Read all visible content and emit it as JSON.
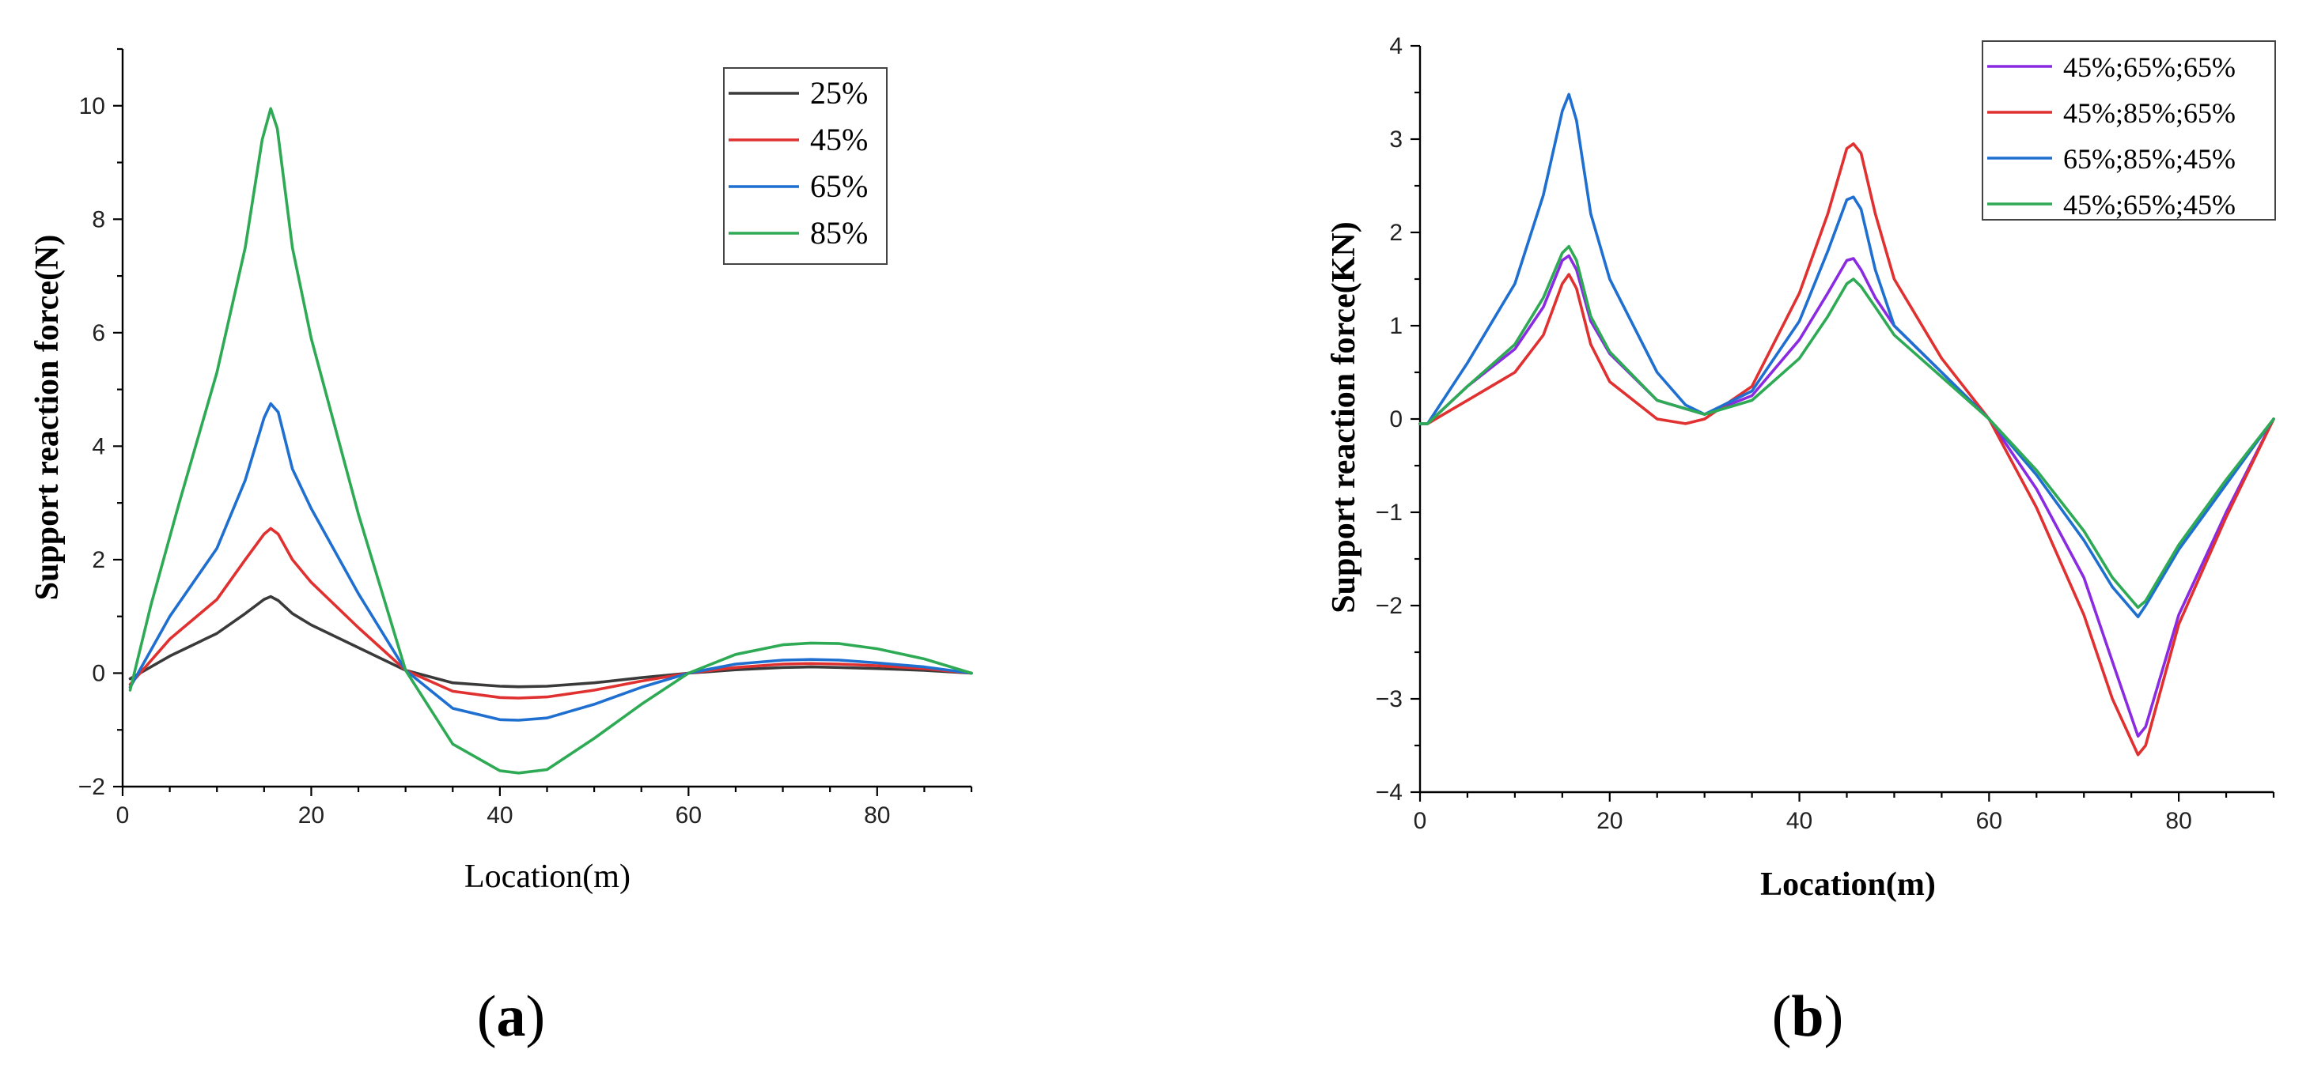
{
  "chart_data": [
    {
      "type": "line",
      "panel_label": "(a)",
      "panel_letter": "a",
      "xlabel": "Location(m)",
      "ylabel": "Support reaction force(N)",
      "xlim": [
        0,
        90
      ],
      "ylim": [
        -2,
        11
      ],
      "xticks": [
        0,
        20,
        40,
        60,
        80
      ],
      "yticks": [
        -2,
        0,
        2,
        4,
        6,
        8,
        10
      ],
      "xtick_labels": [
        "0",
        "20",
        "40",
        "60",
        "80"
      ],
      "ytick_labels": [
        "−2",
        "0",
        "2",
        "4",
        "6",
        "8",
        "10"
      ],
      "legend_position": "top-right",
      "series": [
        {
          "name": "25%",
          "color": "#3a3a3a",
          "x": [
            0.8,
            5,
            10,
            13,
            15,
            15.7,
            16.5,
            18,
            20,
            25,
            30,
            35,
            40,
            42,
            45,
            50,
            55,
            60,
            65,
            70,
            73,
            76,
            80,
            85,
            90
          ],
          "y": [
            -0.1,
            0.3,
            0.7,
            1.05,
            1.3,
            1.35,
            1.28,
            1.05,
            0.85,
            0.45,
            0.05,
            -0.17,
            -0.23,
            -0.24,
            -0.23,
            -0.17,
            -0.08,
            0.0,
            0.06,
            0.1,
            0.11,
            0.1,
            0.08,
            0.05,
            0.0
          ]
        },
        {
          "name": "45%",
          "color": "#e03030",
          "x": [
            0.8,
            5,
            10,
            13,
            15,
            15.7,
            16.5,
            18,
            20,
            25,
            30,
            35,
            40,
            42,
            45,
            50,
            55,
            60,
            65,
            70,
            73,
            76,
            80,
            85,
            90
          ],
          "y": [
            -0.2,
            0.6,
            1.3,
            2.0,
            2.45,
            2.55,
            2.45,
            2.0,
            1.6,
            0.8,
            0.05,
            -0.32,
            -0.43,
            -0.44,
            -0.42,
            -0.3,
            -0.14,
            0.0,
            0.1,
            0.16,
            0.17,
            0.16,
            0.13,
            0.08,
            0.0
          ]
        },
        {
          "name": "65%",
          "color": "#1e6fd0",
          "x": [
            0.8,
            5,
            10,
            13,
            15,
            15.7,
            16.5,
            18,
            20,
            25,
            30,
            35,
            40,
            42,
            45,
            50,
            55,
            60,
            65,
            70,
            73,
            76,
            80,
            85,
            90
          ],
          "y": [
            -0.25,
            1.0,
            2.2,
            3.4,
            4.5,
            4.75,
            4.6,
            3.6,
            2.9,
            1.4,
            0.05,
            -0.62,
            -0.82,
            -0.83,
            -0.79,
            -0.55,
            -0.25,
            0.0,
            0.16,
            0.23,
            0.24,
            0.23,
            0.18,
            0.11,
            0.0
          ]
        },
        {
          "name": "85%",
          "color": "#2eaa55",
          "x": [
            0.8,
            3,
            6,
            10,
            13,
            14.8,
            15.7,
            16.4,
            18,
            20,
            25,
            30,
            35,
            40,
            42,
            45,
            50,
            55,
            60,
            65,
            70,
            73,
            76,
            80,
            85,
            90
          ],
          "y": [
            -0.3,
            1.2,
            3.0,
            5.3,
            7.5,
            9.4,
            9.95,
            9.6,
            7.5,
            5.9,
            2.8,
            0.05,
            -1.25,
            -1.72,
            -1.76,
            -1.7,
            -1.15,
            -0.55,
            0.0,
            0.33,
            0.5,
            0.53,
            0.52,
            0.43,
            0.25,
            0.0
          ]
        }
      ]
    },
    {
      "type": "line",
      "panel_label": "(b)",
      "panel_letter": "b",
      "xlabel": "Location(m)",
      "ylabel": "Support reaction force(KN)",
      "xlim": [
        0,
        90
      ],
      "ylim": [
        -4,
        4
      ],
      "xticks": [
        0,
        20,
        40,
        60,
        80
      ],
      "yticks": [
        -4,
        -3,
        -2,
        -1,
        0,
        1,
        2,
        3,
        4
      ],
      "xtick_labels": [
        "0",
        "20",
        "40",
        "60",
        "80"
      ],
      "ytick_labels": [
        "−4",
        "−3",
        "−2",
        "−1",
        "0",
        "1",
        "2",
        "3",
        "4"
      ],
      "legend_position": "top-right",
      "series": [
        {
          "name": "45%;65%;65%",
          "color": "#8a2be2",
          "x": [
            0,
            0.8,
            5,
            10,
            13,
            15,
            15.7,
            16.5,
            18,
            20,
            25,
            30,
            35,
            40,
            43,
            45,
            45.7,
            46.5,
            48,
            50,
            55,
            60,
            65,
            70,
            73,
            75.7,
            76.5,
            80,
            85,
            90
          ],
          "y": [
            -0.05,
            -0.05,
            0.35,
            0.75,
            1.2,
            1.7,
            1.75,
            1.6,
            1.05,
            0.7,
            0.2,
            0.05,
            0.25,
            0.85,
            1.35,
            1.7,
            1.72,
            1.6,
            1.3,
            1.0,
            0.5,
            0.0,
            -0.75,
            -1.7,
            -2.6,
            -3.4,
            -3.3,
            -2.1,
            -1.0,
            0.0
          ]
        },
        {
          "name": "45%;85%;65%",
          "color": "#e03030",
          "x": [
            0,
            0.8,
            5,
            10,
            13,
            15,
            15.7,
            16.5,
            18,
            20,
            25,
            28,
            30,
            35,
            40,
            43,
            45,
            45.7,
            46.5,
            48,
            50,
            55,
            60,
            65,
            70,
            73,
            75.7,
            76.5,
            80,
            85,
            90
          ],
          "y": [
            -0.05,
            -0.05,
            0.2,
            0.5,
            0.9,
            1.45,
            1.55,
            1.4,
            0.8,
            0.4,
            0.0,
            -0.05,
            0.0,
            0.35,
            1.35,
            2.2,
            2.9,
            2.95,
            2.85,
            2.2,
            1.5,
            0.65,
            0.0,
            -0.95,
            -2.1,
            -3.0,
            -3.6,
            -3.5,
            -2.2,
            -1.05,
            0.0
          ]
        },
        {
          "name": "65%;85%;45%",
          "color": "#1e6fd0",
          "x": [
            0,
            0.8,
            5,
            10,
            13,
            15,
            15.7,
            16.5,
            18,
            20,
            25,
            28,
            30,
            35,
            40,
            43,
            45,
            45.7,
            46.5,
            48,
            50,
            55,
            60,
            65,
            70,
            73,
            75.7,
            76.5,
            80,
            85,
            90
          ],
          "y": [
            -0.05,
            -0.05,
            0.6,
            1.45,
            2.4,
            3.3,
            3.48,
            3.2,
            2.2,
            1.5,
            0.5,
            0.15,
            0.05,
            0.3,
            1.05,
            1.8,
            2.35,
            2.38,
            2.25,
            1.6,
            1.0,
            0.5,
            0.0,
            -0.6,
            -1.3,
            -1.8,
            -2.12,
            -2.0,
            -1.4,
            -0.7,
            0.0
          ]
        },
        {
          "name": "45%;65%;45%",
          "color": "#2eaa55",
          "x": [
            0,
            0.8,
            5,
            10,
            13,
            15,
            15.7,
            16.5,
            18,
            20,
            25,
            30,
            35,
            40,
            43,
            45,
            45.7,
            46.5,
            48,
            50,
            55,
            60,
            65,
            70,
            73,
            75.7,
            76.5,
            80,
            85,
            90
          ],
          "y": [
            -0.05,
            -0.05,
            0.35,
            0.8,
            1.3,
            1.78,
            1.85,
            1.7,
            1.1,
            0.72,
            0.2,
            0.05,
            0.2,
            0.65,
            1.1,
            1.45,
            1.5,
            1.42,
            1.2,
            0.9,
            0.45,
            0.0,
            -0.55,
            -1.2,
            -1.7,
            -2.02,
            -1.95,
            -1.35,
            -0.65,
            0.0
          ]
        }
      ]
    }
  ]
}
